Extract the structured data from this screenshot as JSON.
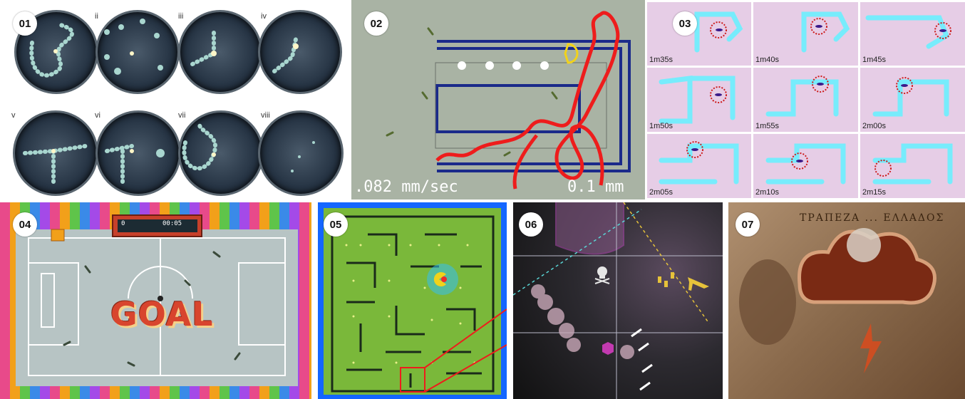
{
  "panels": [
    {
      "id": "01",
      "label": "01"
    },
    {
      "id": "02",
      "label": "02"
    },
    {
      "id": "03",
      "label": "03"
    },
    {
      "id": "04",
      "label": "04"
    },
    {
      "id": "05",
      "label": "05"
    },
    {
      "id": "06",
      "label": "06"
    },
    {
      "id": "07",
      "label": "07"
    }
  ],
  "panel01": {
    "roman_labels": [
      "ii",
      "iii",
      "iv",
      "v",
      "vi",
      "vii",
      "viii"
    ]
  },
  "panel02": {
    "speed": ".082 mm/sec",
    "scale": "0.1 mm"
  },
  "panel03": {
    "timestamps": [
      "1m35s",
      "1m40s",
      "1m45s",
      "1m50s",
      "1m55s",
      "2m00s",
      "2m05s",
      "2m10s",
      "2m15s"
    ]
  },
  "panel04": {
    "goal_text": "GOAL",
    "score_left": "0",
    "clock": "00:05"
  },
  "panel07": {
    "banknote_text": "ΤΡΑΠΕΖΑ ... ΕΛΛΑΔΟΣ"
  },
  "colors": {
    "maze_blue": "#1a2a8a",
    "trail_red": "#ee1c1c",
    "cell_cyan": "#6cf0ff",
    "pacman_yellow": "#f2d21a",
    "field_gray": "#b7c4c4",
    "board_green": "#7ab83a",
    "board_border_blue": "#1466ff"
  },
  "icons": [
    "skull-icon",
    "airplane-icon",
    "bomb-icon",
    "arrow-icon"
  ]
}
